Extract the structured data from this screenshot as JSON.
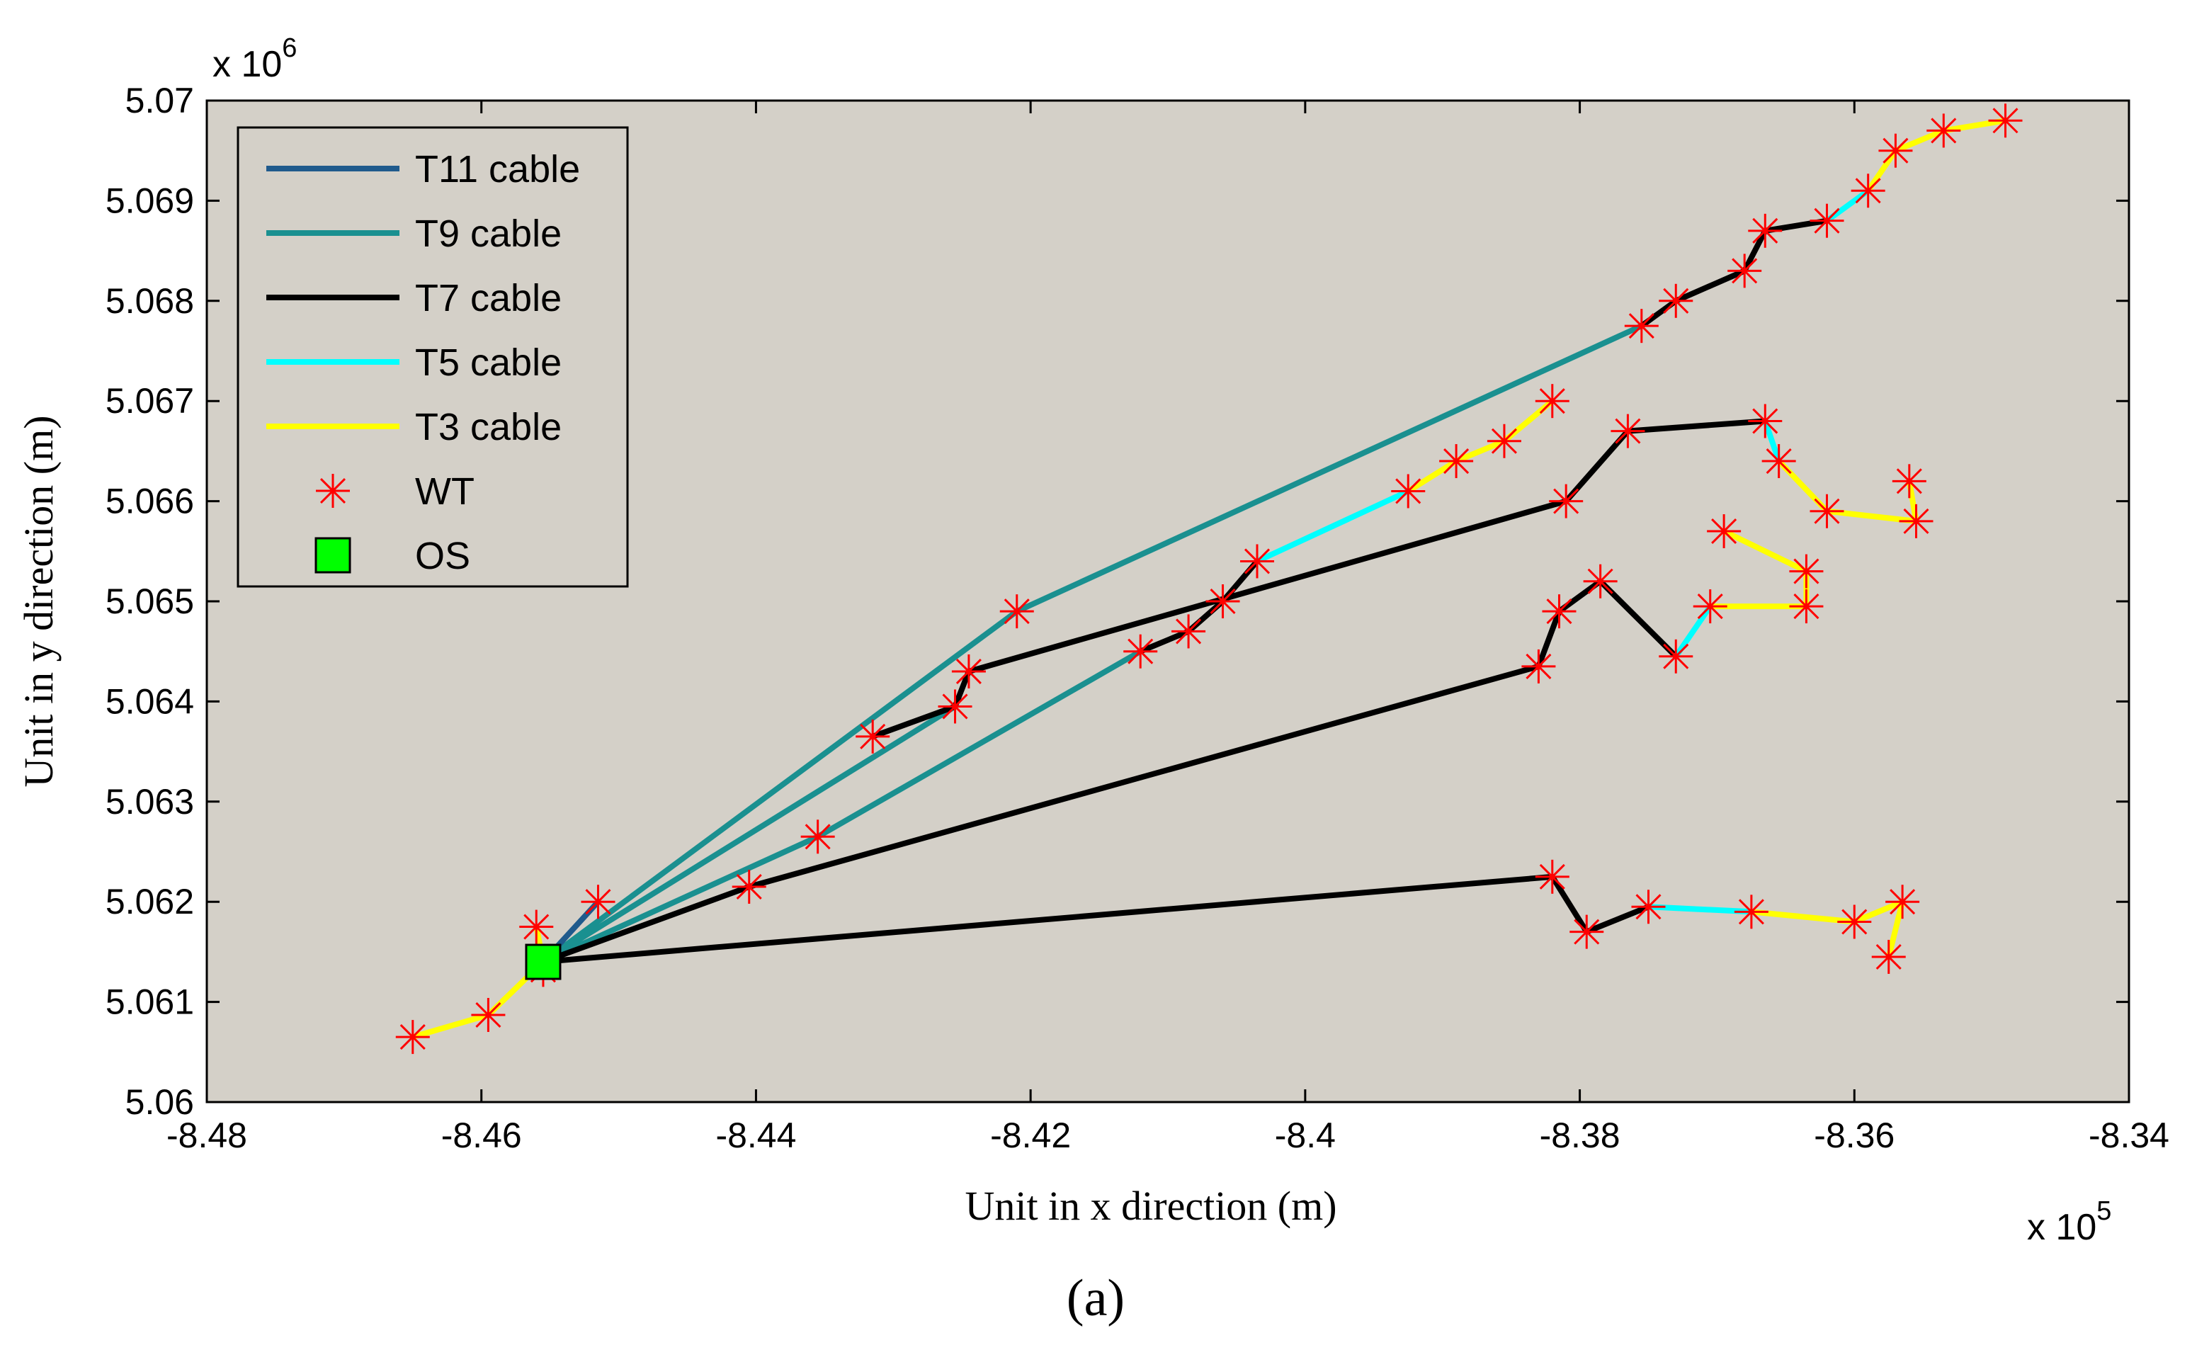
{
  "chart_data": {
    "type": "line",
    "title": "",
    "xlabel": "Unit in x direction (m)",
    "ylabel": "Unit in y direction (m)",
    "x_multiplier_base": "x 10",
    "x_multiplier_exp": "5",
    "y_multiplier_base": "x 10",
    "y_multiplier_exp": "6",
    "xlim": [
      -8.48,
      -8.34
    ],
    "ylim": [
      5.06,
      5.07
    ],
    "xticks": [
      -8.48,
      -8.46,
      -8.44,
      -8.42,
      -8.4,
      -8.38,
      -8.36,
      -8.34
    ],
    "xtick_labels": [
      "-8.48",
      "-8.46",
      "-8.44",
      "-8.42",
      "-8.4",
      "-8.38",
      "-8.36",
      "-8.34"
    ],
    "yticks": [
      5.06,
      5.061,
      5.062,
      5.063,
      5.064,
      5.065,
      5.066,
      5.067,
      5.068,
      5.069,
      5.07
    ],
    "ytick_labels": [
      "5.06",
      "5.061",
      "5.062",
      "5.063",
      "5.064",
      "5.065",
      "5.066",
      "5.067",
      "5.068",
      "5.069",
      "5.07"
    ],
    "grid": false,
    "legend_position": "top-left",
    "caption": "(a)",
    "colors": {
      "background": "#d4d0c8",
      "T11": "#1f5a8c",
      "T9": "#1a9090",
      "T7": "#000000",
      "T5": "#00ffff",
      "T3": "#ffff00",
      "WT": "#ff0000",
      "OS": "#00ff00"
    },
    "legend": [
      {
        "label": "T11 cable",
        "kind": "line",
        "color": "#1f5a8c"
      },
      {
        "label": "T9 cable",
        "kind": "line",
        "color": "#1a9090"
      },
      {
        "label": "T7 cable",
        "kind": "line",
        "color": "#000000"
      },
      {
        "label": "T5 cable",
        "kind": "line",
        "color": "#00ffff"
      },
      {
        "label": "T3 cable",
        "kind": "line",
        "color": "#ffff00"
      },
      {
        "label": "WT",
        "kind": "star",
        "color": "#ff0000"
      },
      {
        "label": "OS",
        "kind": "square",
        "color": "#00ff00"
      }
    ],
    "cables": [
      {
        "type": "T9",
        "points": [
          [
            -8.4555,
            5.0614
          ],
          [
            -8.421,
            5.0649
          ],
          [
            -8.3755,
            5.06775
          ]
        ]
      },
      {
        "type": "T9",
        "points": [
          [
            -8.4555,
            5.0614
          ],
          [
            -8.4255,
            5.06395
          ]
        ]
      },
      {
        "type": "T9",
        "points": [
          [
            -8.4555,
            5.0614
          ],
          [
            -8.4355,
            5.06265
          ],
          [
            -8.412,
            5.0645
          ]
        ]
      },
      {
        "type": "T11",
        "points": [
          [
            -8.4555,
            5.0614
          ],
          [
            -8.4515,
            5.062
          ]
        ]
      },
      {
        "type": "T7",
        "points": [
          [
            -8.3755,
            5.06775
          ],
          [
            -8.373,
            5.068
          ],
          [
            -8.368,
            5.0683
          ],
          [
            -8.3665,
            5.0687
          ],
          [
            -8.362,
            5.0688
          ]
        ]
      },
      {
        "type": "T5",
        "points": [
          [
            -8.362,
            5.0688
          ],
          [
            -8.359,
            5.0691
          ]
        ]
      },
      {
        "type": "T3",
        "points": [
          [
            -8.359,
            5.0691
          ],
          [
            -8.357,
            5.0695
          ],
          [
            -8.3535,
            5.0697
          ],
          [
            -8.349,
            5.0698
          ]
        ]
      },
      {
        "type": "T7",
        "points": [
          [
            -8.4255,
            5.06395
          ],
          [
            -8.4245,
            5.0643
          ],
          [
            -8.381,
            5.066
          ],
          [
            -8.3765,
            5.0667
          ],
          [
            -8.3665,
            5.0668
          ]
        ]
      },
      {
        "type": "T7",
        "points": [
          [
            -8.4255,
            5.06395
          ],
          [
            -8.4315,
            5.06365
          ]
        ]
      },
      {
        "type": "T5",
        "points": [
          [
            -8.3665,
            5.0668
          ],
          [
            -8.3655,
            5.0664
          ]
        ]
      },
      {
        "type": "T3",
        "points": [
          [
            -8.3655,
            5.0664
          ],
          [
            -8.362,
            5.0659
          ],
          [
            -8.3555,
            5.0658
          ],
          [
            -8.356,
            5.0662
          ]
        ]
      },
      {
        "type": "T7",
        "points": [
          [
            -8.412,
            5.0645
          ],
          [
            -8.4085,
            5.0647
          ],
          [
            -8.406,
            5.065
          ],
          [
            -8.4035,
            5.0654
          ]
        ]
      },
      {
        "type": "T5",
        "points": [
          [
            -8.4035,
            5.0654
          ],
          [
            -8.3925,
            5.0661
          ]
        ]
      },
      {
        "type": "T3",
        "points": [
          [
            -8.3925,
            5.0661
          ],
          [
            -8.389,
            5.0664
          ],
          [
            -8.3855,
            5.0666
          ],
          [
            -8.382,
            5.067
          ]
        ]
      },
      {
        "type": "T7",
        "points": [
          [
            -8.4555,
            5.0614
          ],
          [
            -8.4405,
            5.06215
          ],
          [
            -8.383,
            5.06435
          ],
          [
            -8.3815,
            5.0649
          ],
          [
            -8.3785,
            5.0652
          ],
          [
            -8.373,
            5.06445
          ]
        ]
      },
      {
        "type": "T5",
        "points": [
          [
            -8.373,
            5.06445
          ],
          [
            -8.3705,
            5.06495
          ]
        ]
      },
      {
        "type": "T3",
        "points": [
          [
            -8.3705,
            5.06495
          ],
          [
            -8.3635,
            5.06495
          ],
          [
            -8.3635,
            5.0653
          ],
          [
            -8.3695,
            5.0657
          ]
        ]
      },
      {
        "type": "T7",
        "points": [
          [
            -8.4555,
            5.0614
          ],
          [
            -8.382,
            5.06225
          ],
          [
            -8.3795,
            5.0617
          ],
          [
            -8.375,
            5.06195
          ]
        ]
      },
      {
        "type": "T5",
        "points": [
          [
            -8.375,
            5.06195
          ],
          [
            -8.3675,
            5.0619
          ]
        ]
      },
      {
        "type": "T3",
        "points": [
          [
            -8.3675,
            5.0619
          ],
          [
            -8.36,
            5.0618
          ],
          [
            -8.3565,
            5.062
          ],
          [
            -8.3575,
            5.06145
          ]
        ]
      },
      {
        "type": "T3",
        "points": [
          [
            -8.4555,
            5.0614
          ],
          [
            -8.456,
            5.06175
          ]
        ]
      },
      {
        "type": "T3",
        "points": [
          [
            -8.4555,
            5.0614
          ],
          [
            -8.4595,
            5.06087
          ],
          [
            -8.465,
            5.06065
          ]
        ]
      }
    ],
    "turbines": [
      [
        -8.465,
        5.06065
      ],
      [
        -8.4595,
        5.06087
      ],
      [
        -8.4555,
        5.06132
      ],
      [
        -8.456,
        5.06175
      ],
      [
        -8.4515,
        5.062
      ],
      [
        -8.4405,
        5.06215
      ],
      [
        -8.4355,
        5.06265
      ],
      [
        -8.4315,
        5.06365
      ],
      [
        -8.4255,
        5.06395
      ],
      [
        -8.4245,
        5.0643
      ],
      [
        -8.421,
        5.0649
      ],
      [
        -8.412,
        5.0645
      ],
      [
        -8.4085,
        5.0647
      ],
      [
        -8.406,
        5.065
      ],
      [
        -8.4035,
        5.0654
      ],
      [
        -8.3925,
        5.0661
      ],
      [
        -8.389,
        5.0664
      ],
      [
        -8.3855,
        5.0666
      ],
      [
        -8.382,
        5.067
      ],
      [
        -8.381,
        5.066
      ],
      [
        -8.3765,
        5.0667
      ],
      [
        -8.3665,
        5.0668
      ],
      [
        -8.3655,
        5.0664
      ],
      [
        -8.362,
        5.0659
      ],
      [
        -8.3555,
        5.0658
      ],
      [
        -8.356,
        5.0662
      ],
      [
        -8.3695,
        5.0657
      ],
      [
        -8.3635,
        5.0653
      ],
      [
        -8.3635,
        5.06495
      ],
      [
        -8.3705,
        5.06495
      ],
      [
        -8.373,
        5.06445
      ],
      [
        -8.3785,
        5.0652
      ],
      [
        -8.3815,
        5.0649
      ],
      [
        -8.383,
        5.06435
      ],
      [
        -8.382,
        5.06225
      ],
      [
        -8.3795,
        5.0617
      ],
      [
        -8.375,
        5.06195
      ],
      [
        -8.3675,
        5.0619
      ],
      [
        -8.36,
        5.0618
      ],
      [
        -8.3565,
        5.062
      ],
      [
        -8.3575,
        5.06145
      ],
      [
        -8.3755,
        5.06775
      ],
      [
        -8.373,
        5.068
      ],
      [
        -8.368,
        5.0683
      ],
      [
        -8.3665,
        5.0687
      ],
      [
        -8.362,
        5.0688
      ],
      [
        -8.359,
        5.0691
      ],
      [
        -8.357,
        5.0695
      ],
      [
        -8.3535,
        5.0697
      ],
      [
        -8.349,
        5.0698
      ]
    ],
    "substation": [
      -8.4555,
      5.0614
    ]
  }
}
